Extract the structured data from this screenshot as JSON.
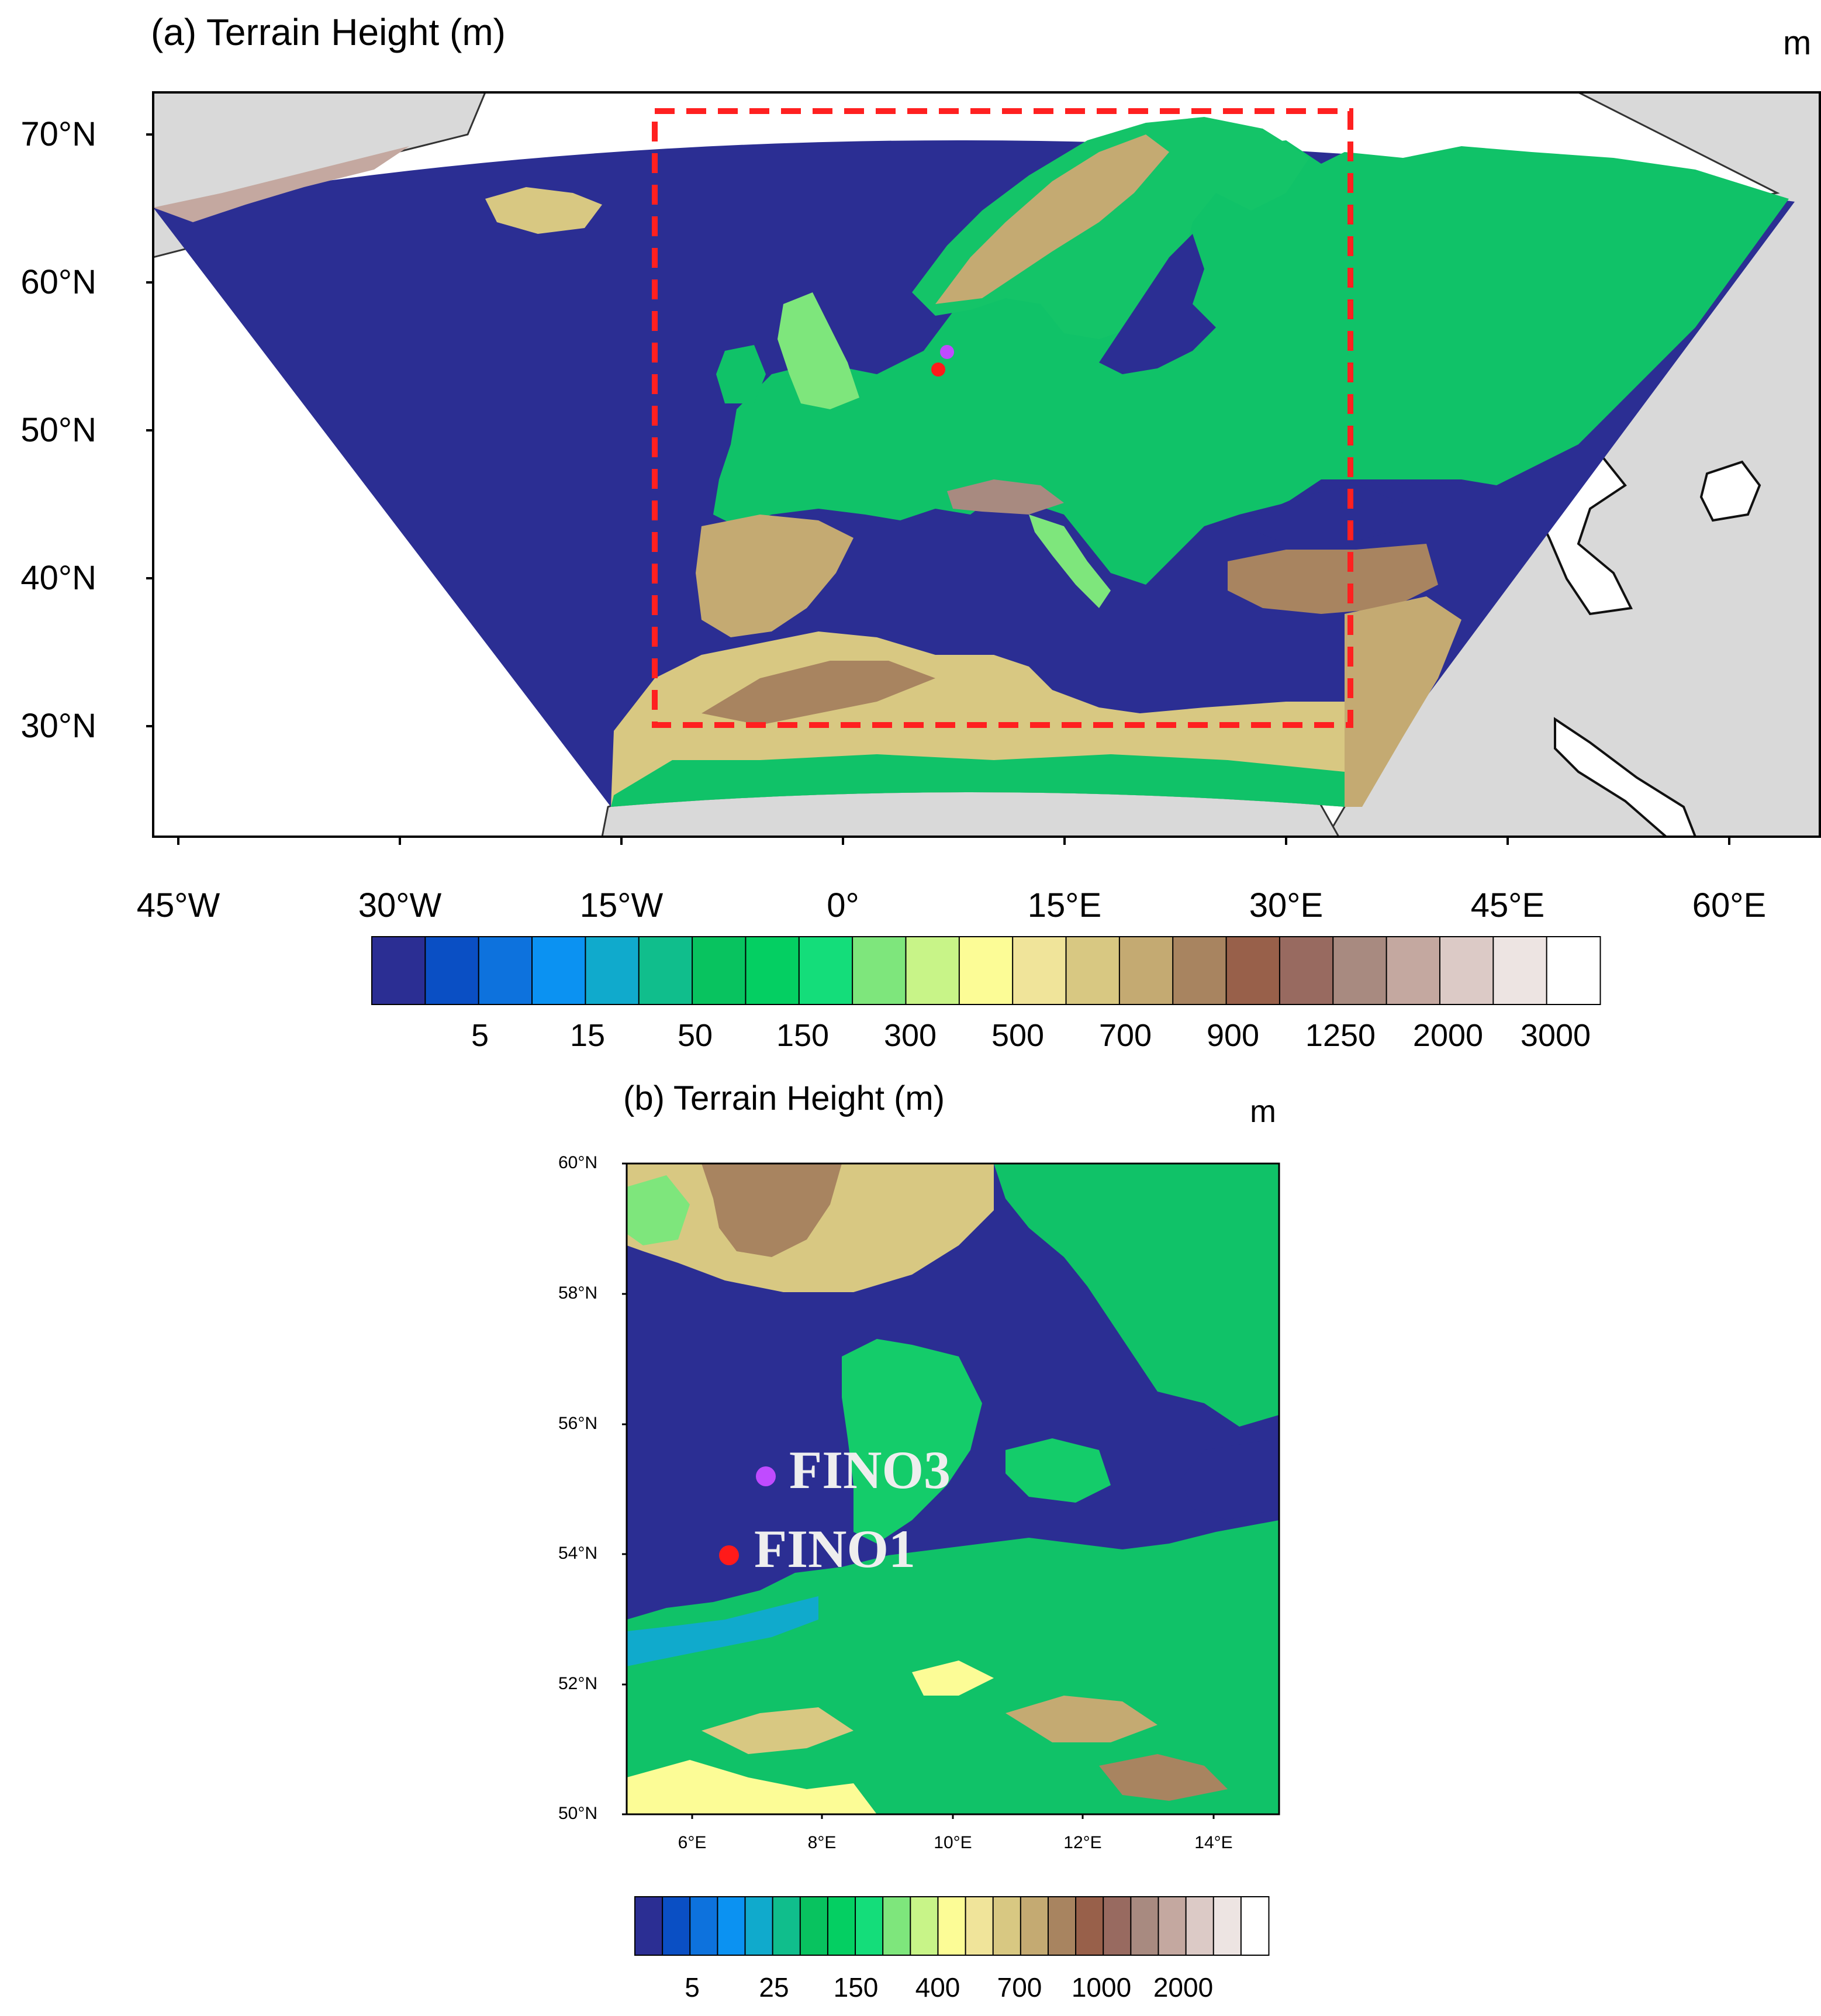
{
  "panel_a": {
    "title": "(a) Terrain Height (m)",
    "unit": "m",
    "lat_labels": [
      "70°N",
      "60°N",
      "50°N",
      "40°N",
      "30°N"
    ],
    "lon_labels": [
      "45°W",
      "30°W",
      "15°W",
      "0°",
      "15°E",
      "30°E",
      "45°E",
      "60°E"
    ],
    "colorbar_labels": [
      "5",
      "15",
      "50",
      "150",
      "300",
      "500",
      "700",
      "900",
      "1250",
      "2000",
      "3000"
    ],
    "highlight_box": "red dashed box marking inner domain",
    "stations": [
      {
        "name": "FINO3",
        "color": "#c04bff"
      },
      {
        "name": "FINO1",
        "color": "#ff1a1a"
      }
    ]
  },
  "panel_b": {
    "title": "(b) Terrain Height (m)",
    "unit": "m",
    "lat_labels": [
      "60°N",
      "58°N",
      "56°N",
      "54°N",
      "52°N",
      "50°N"
    ],
    "lon_labels": [
      "6°E",
      "8°E",
      "10°E",
      "12°E",
      "14°E"
    ],
    "colorbar_labels": [
      "5",
      "25",
      "150",
      "400",
      "700",
      "1000",
      "2000"
    ],
    "stations": [
      {
        "name": "FINO3",
        "color": "#c04bff"
      },
      {
        "name": "FINO1",
        "color": "#ff1a1a"
      }
    ]
  },
  "colors": {
    "sea": "#2b2e93",
    "outside": "#d9d9d9",
    "box": "#ff2020",
    "colorbar_a": [
      "#2b2e93",
      "#0a4fc4",
      "#0d72dd",
      "#0b92f2",
      "#10aacc",
      "#10be8c",
      "#08c35f",
      "#04cf62",
      "#14dd7a",
      "#7ee67c",
      "#c8f488",
      "#fcfc96",
      "#f0e49a",
      "#d8c882",
      "#c4aa72",
      "#a88460",
      "#98604a",
      "#986a60",
      "#a88a80",
      "#c4a8a0",
      "#dccac6",
      "#ede4e2",
      "#ffffff"
    ],
    "colorbar_b": [
      "#2b2e93",
      "#0a4fc4",
      "#0d72dd",
      "#0b92f2",
      "#10aacc",
      "#10be8c",
      "#08c35f",
      "#04cf62",
      "#14dd7a",
      "#7ee67c",
      "#c8f488",
      "#fcfc96",
      "#f0e49a",
      "#d8c882",
      "#c4aa72",
      "#a88460",
      "#98604a",
      "#986a60",
      "#a88a80",
      "#c4a8a0",
      "#dccac6",
      "#ede4e2",
      "#ffffff"
    ]
  }
}
